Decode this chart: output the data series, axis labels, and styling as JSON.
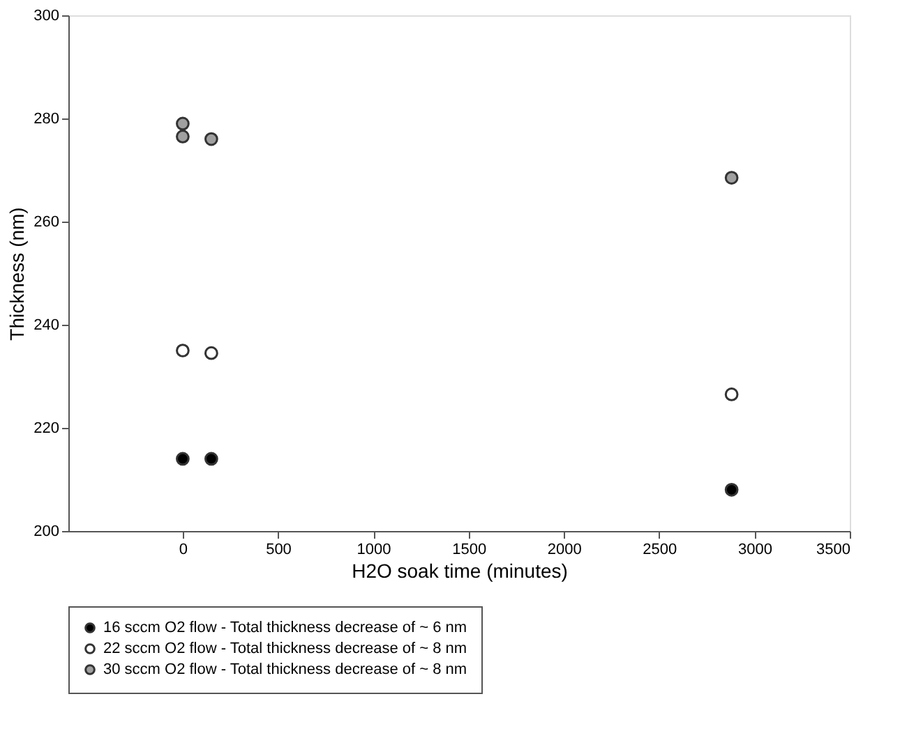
{
  "chart_data": {
    "type": "scatter",
    "xlabel": "H2O soak time (minutes)",
    "ylabel": "Thickness (nm)",
    "xlim": [
      -600,
      3500
    ],
    "xticks": [
      0,
      500,
      1000,
      1500,
      2000,
      2500,
      3000,
      3500
    ],
    "ylim": [
      200,
      300
    ],
    "yticks": [
      200,
      220,
      240,
      260,
      280,
      300
    ],
    "grid": false,
    "legend": "bottom",
    "marker": "circle",
    "series": [
      {
        "name": "16 sccm O2 flow - Total thickness decrease of ~ 6 nm",
        "color": "#000000",
        "x": [
          0,
          150,
          2880
        ],
        "values": [
          214,
          214,
          208
        ]
      },
      {
        "name": "22 sccm O2 flow - Total thickness decrease of ~ 8 nm",
        "color": "#ffffff",
        "x": [
          0,
          150,
          2880
        ],
        "values": [
          235,
          234.5,
          226.5
        ]
      },
      {
        "name": "30 sccm O2 flow - Total thickness decrease of ~ 8 nm",
        "color": "#a0a0a0",
        "x": [
          0,
          0,
          150,
          2880
        ],
        "values": [
          279,
          276.5,
          276,
          268.5
        ]
      }
    ]
  }
}
